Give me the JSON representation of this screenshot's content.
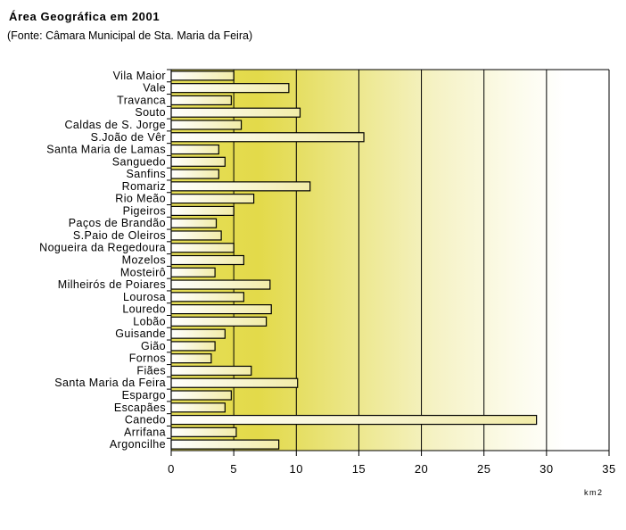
{
  "chart_data": {
    "type": "bar",
    "orientation": "horizontal",
    "title": "Área Geográfica em 2001",
    "subtitle": "(Fonte: Câmara Municipal de Sta. Maria da Feira)",
    "xlabel": "km2",
    "ylabel": "",
    "xlim": [
      0,
      35
    ],
    "xticks": [
      0,
      5,
      10,
      15,
      20,
      25,
      30,
      35
    ],
    "grid": true,
    "categories": [
      "Vila Maior",
      "Vale",
      "Travanca",
      "Souto",
      "Caldas de S. Jorge",
      "S.João de Vêr",
      "Santa Maria de Lamas",
      "Sanguedo",
      "Sanfins",
      "Romariz",
      "Rio Meão",
      "Pigeiros",
      "Paços de Brandão",
      "S.Paio de Oleiros",
      "Nogueira da Regedoura",
      "Mozelos",
      "Mosteirô",
      "Milheirós de Poiares",
      "Lourosa",
      "Louredo",
      "Lobão",
      "Guisande",
      "Gião",
      "Fornos",
      "Fiães",
      "Santa Maria da Feira",
      "Espargo",
      "Escapães",
      "Canedo",
      "Arrifana",
      "Argoncilhe"
    ],
    "values": [
      5.0,
      9.4,
      4.8,
      10.3,
      5.6,
      15.4,
      3.8,
      4.3,
      3.8,
      11.1,
      6.6,
      5.0,
      3.6,
      4.0,
      5.0,
      5.8,
      3.5,
      7.9,
      5.8,
      8.0,
      7.6,
      4.3,
      3.5,
      3.2,
      6.4,
      10.1,
      4.8,
      4.3,
      29.2,
      5.2,
      8.6
    ]
  }
}
